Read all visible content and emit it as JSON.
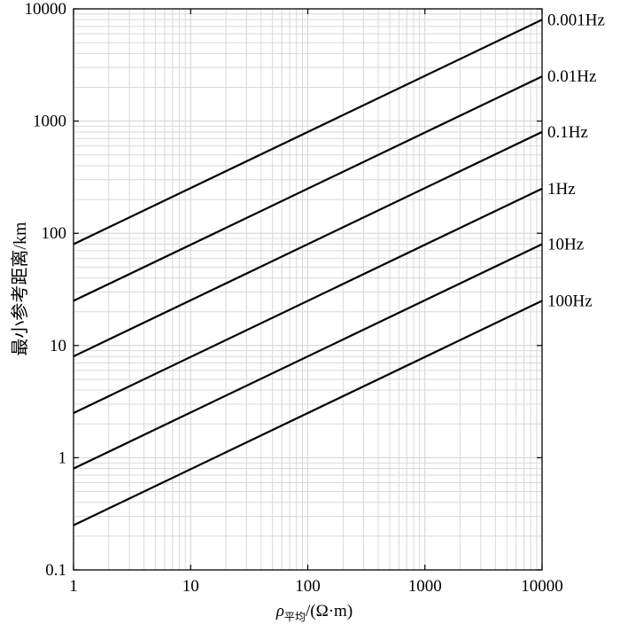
{
  "chart_data": {
    "type": "line",
    "xscale": "log",
    "yscale": "log",
    "xlim": [
      1,
      10000
    ],
    "ylim": [
      0.1,
      10000
    ],
    "grid": true,
    "xlabel_symbol": "ρ",
    "xlabel_subscript": "平均",
    "xlabel_unit": "/(Ω·m)",
    "ylabel": "最小参考距离/km",
    "xticks": [
      1,
      10,
      100,
      1000,
      10000
    ],
    "xtick_labels": [
      "1",
      "10",
      "100",
      "1000",
      "10000"
    ],
    "yticks": [
      0.1,
      1,
      10,
      100,
      1000,
      10000
    ],
    "ytick_labels": [
      "0.1",
      "1",
      "10",
      "100",
      "1000",
      "10000"
    ],
    "series": [
      {
        "name": "0.001Hz",
        "x": [
          1,
          10000
        ],
        "y": [
          80,
          8000
        ]
      },
      {
        "name": "0.01Hz",
        "x": [
          1,
          10000
        ],
        "y": [
          25,
          2500
        ]
      },
      {
        "name": "0.1Hz",
        "x": [
          1,
          10000
        ],
        "y": [
          8,
          800
        ]
      },
      {
        "name": "1Hz",
        "x": [
          1,
          10000
        ],
        "y": [
          2.5,
          250
        ]
      },
      {
        "name": "10Hz",
        "x": [
          1,
          10000
        ],
        "y": [
          0.8,
          80
        ]
      },
      {
        "name": "100Hz",
        "x": [
          1,
          10000
        ],
        "y": [
          0.25,
          25
        ]
      }
    ],
    "line_color": "#000000",
    "grid_color": "#d9d9d9"
  }
}
